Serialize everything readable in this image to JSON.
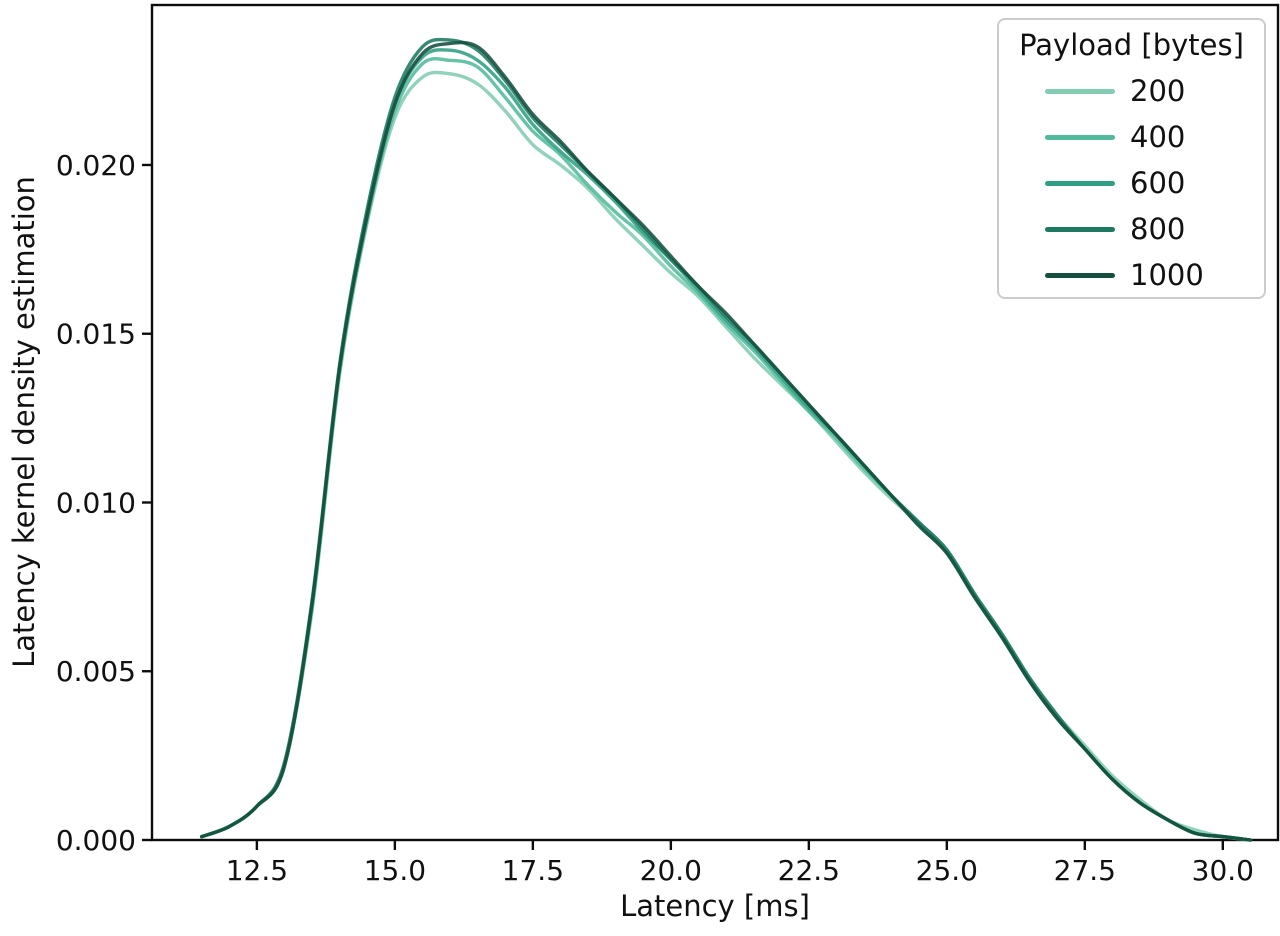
{
  "chart_data": {
    "type": "line",
    "title": "",
    "xlabel": "Latency [ms]",
    "ylabel": "Latency kernel density estimation",
    "legend_title": "Payload [bytes]",
    "legend_position": "upper right",
    "grid": false,
    "background": "#ffffff",
    "spine_color": "#0d0d0d",
    "text_color": "#111111",
    "xlim": [
      10.6,
      31.0
    ],
    "ylim": [
      0,
      0.02474
    ],
    "xtick_values": [
      12.5,
      15.0,
      17.5,
      20.0,
      22.5,
      25.0,
      27.5,
      30.0
    ],
    "xtick_labels": [
      "12.5",
      "15.0",
      "17.5",
      "20.0",
      "22.5",
      "25.0",
      "27.5",
      "30.0"
    ],
    "ytick_values": [
      0.0,
      0.005,
      0.01,
      0.015,
      0.02
    ],
    "ytick_labels": [
      "0.000",
      "0.005",
      "0.010",
      "0.015",
      "0.020"
    ],
    "x": [
      11.5,
      12.0,
      12.5,
      13.0,
      13.5,
      14.0,
      14.5,
      15.0,
      15.5,
      16.0,
      16.5,
      17.0,
      17.5,
      18.0,
      18.5,
      19.0,
      19.5,
      20.0,
      20.5,
      21.0,
      21.5,
      22.0,
      22.5,
      23.0,
      23.5,
      24.0,
      24.5,
      25.0,
      25.5,
      26.0,
      26.5,
      27.0,
      27.5,
      28.0,
      28.5,
      29.0,
      29.5,
      30.0,
      30.5
    ],
    "series": [
      {
        "name": "200",
        "color": "#82ccb2",
        "values": [
          0.0001,
          0.0004,
          0.001,
          0.0022,
          0.0068,
          0.0138,
          0.0183,
          0.0214,
          0.0226,
          0.0227,
          0.0224,
          0.0216,
          0.0206,
          0.02,
          0.0193,
          0.0184,
          0.0176,
          0.0168,
          0.0161,
          0.0152,
          0.0143,
          0.0135,
          0.0127,
          0.0118,
          0.0109,
          0.0101,
          0.0094,
          0.0086,
          0.0073,
          0.0061,
          0.0048,
          0.0037,
          0.0028,
          0.0019,
          0.0012,
          0.0006,
          0.0003,
          0.0001,
          0.0
        ]
      },
      {
        "name": "400",
        "color": "#52b99c",
        "values": [
          0.0001,
          0.0004,
          0.001,
          0.0022,
          0.0069,
          0.0139,
          0.0184,
          0.0216,
          0.023,
          0.0231,
          0.0229,
          0.022,
          0.021,
          0.0203,
          0.0194,
          0.0186,
          0.0179,
          0.017,
          0.0162,
          0.0153,
          0.0145,
          0.0136,
          0.0127,
          0.0119,
          0.011,
          0.0102,
          0.0093,
          0.0085,
          0.0072,
          0.006,
          0.0047,
          0.0036,
          0.0027,
          0.0018,
          0.0011,
          0.0006,
          0.0002,
          0.0001,
          0.0
        ]
      },
      {
        "name": "600",
        "color": "#2f9e82",
        "values": [
          0.0001,
          0.0004,
          0.001,
          0.0022,
          0.007,
          0.014,
          0.0186,
          0.0218,
          0.0232,
          0.0234,
          0.0231,
          0.0223,
          0.0212,
          0.0204,
          0.0197,
          0.0189,
          0.018,
          0.0172,
          0.0163,
          0.0154,
          0.0146,
          0.0137,
          0.0128,
          0.012,
          0.0111,
          0.0102,
          0.0094,
          0.0085,
          0.0072,
          0.006,
          0.0047,
          0.0036,
          0.0027,
          0.0018,
          0.0011,
          0.0006,
          0.0002,
          0.0001,
          0.0
        ]
      },
      {
        "name": "800",
        "color": "#1d7a61",
        "values": [
          0.0001,
          0.0004,
          0.001,
          0.0023,
          0.0071,
          0.0141,
          0.0187,
          0.022,
          0.0235,
          0.0237,
          0.0234,
          0.0225,
          0.0214,
          0.0206,
          0.0198,
          0.019,
          0.0181,
          0.0172,
          0.0164,
          0.0155,
          0.0147,
          0.0138,
          0.0129,
          0.012,
          0.0111,
          0.0102,
          0.0094,
          0.0086,
          0.0073,
          0.0061,
          0.0048,
          0.0037,
          0.0027,
          0.0018,
          0.0011,
          0.0006,
          0.0002,
          0.0001,
          0.0
        ]
      },
      {
        "name": "1000",
        "color": "#164f3d",
        "values": [
          0.0001,
          0.0004,
          0.001,
          0.0022,
          0.007,
          0.014,
          0.0185,
          0.0218,
          0.0233,
          0.0236,
          0.0235,
          0.0226,
          0.0215,
          0.0207,
          0.0198,
          0.019,
          0.0182,
          0.0173,
          0.0164,
          0.0156,
          0.0147,
          0.0138,
          0.0129,
          0.012,
          0.0111,
          0.0102,
          0.0093,
          0.0085,
          0.0072,
          0.006,
          0.0047,
          0.0036,
          0.0027,
          0.0018,
          0.0011,
          0.0006,
          0.0002,
          0.0001,
          0.0
        ]
      }
    ]
  }
}
